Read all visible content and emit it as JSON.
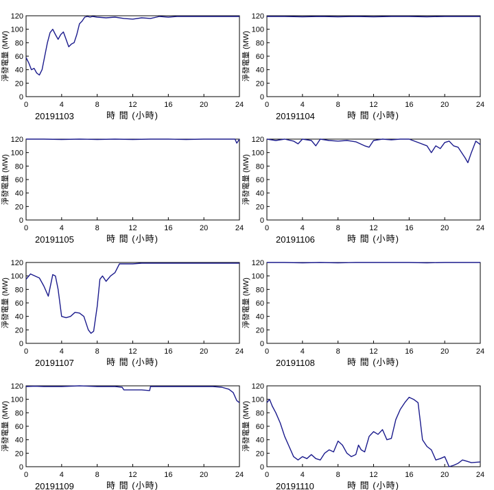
{
  "colors": {
    "series": "#1a1a8c",
    "axis": "#000000"
  },
  "axes": {
    "xlabel": "時 間 (小時)",
    "ylabel": "淨發電量 (MW)",
    "xlim": [
      0,
      24
    ],
    "ylim": [
      0,
      120
    ],
    "xticks": [
      0,
      4,
      8,
      12,
      16,
      20,
      24
    ],
    "yticks": [
      0,
      20,
      40,
      60,
      80,
      100,
      120
    ]
  },
  "chart_data": [
    {
      "type": "line",
      "date": "20191103",
      "x": [
        0,
        0.3,
        0.6,
        0.9,
        1.2,
        1.5,
        1.8,
        2.1,
        2.4,
        2.7,
        3,
        3.3,
        3.6,
        3.9,
        4.2,
        4.5,
        4.8,
        5.1,
        5.4,
        5.7,
        6,
        6.3,
        6.6,
        6.9,
        7.2,
        7.5,
        8,
        9,
        10,
        11,
        12,
        13,
        14,
        15,
        16,
        17,
        18,
        19,
        20,
        21,
        22,
        23,
        23.5,
        24
      ],
      "y": [
        58,
        50,
        40,
        42,
        35,
        32,
        40,
        60,
        80,
        95,
        100,
        92,
        85,
        92,
        96,
        85,
        74,
        78,
        80,
        92,
        108,
        112,
        118,
        119,
        118,
        119,
        118,
        117,
        118,
        116,
        115,
        117,
        116,
        119,
        118,
        119,
        119,
        119,
        119,
        119,
        119,
        119,
        119,
        119
      ]
    },
    {
      "type": "line",
      "date": "20191104",
      "x": [
        0,
        2,
        4,
        6,
        8,
        10,
        12,
        14,
        16,
        18,
        20,
        22,
        24
      ],
      "y": [
        119,
        119,
        118.5,
        119,
        118.5,
        119,
        118.5,
        119,
        119,
        118.5,
        119,
        119,
        119
      ]
    },
    {
      "type": "line",
      "date": "20191105",
      "x": [
        0,
        2,
        4,
        6,
        8,
        10,
        12,
        14,
        16,
        18,
        20,
        22,
        23.5,
        23.7,
        24
      ],
      "y": [
        120,
        120,
        119.5,
        120,
        119.5,
        120,
        119.5,
        120,
        120,
        119.5,
        120,
        120,
        120,
        114,
        120
      ]
    },
    {
      "type": "line",
      "date": "20191106",
      "x": [
        0,
        1,
        2,
        3,
        3.5,
        4,
        5,
        5.5,
        6,
        7,
        8,
        9,
        10,
        11,
        11.5,
        12,
        13,
        14,
        15,
        16,
        17,
        18,
        18.5,
        19,
        19.5,
        20,
        20.5,
        21,
        21.5,
        22,
        22.3,
        22.6,
        23,
        23.5,
        24
      ],
      "y": [
        120,
        118,
        120,
        117,
        113,
        120,
        118,
        110,
        120,
        118,
        117,
        118,
        116,
        110,
        108,
        118,
        120,
        119,
        120,
        120,
        115,
        110,
        100,
        110,
        106,
        115,
        117,
        110,
        108,
        98,
        92,
        85,
        100,
        117,
        112
      ]
    },
    {
      "type": "line",
      "date": "20191107",
      "x": [
        0,
        0.5,
        1,
        1.5,
        2,
        2.5,
        3,
        3.3,
        3.6,
        4,
        4.5,
        5,
        5.5,
        6,
        6.5,
        7,
        7.3,
        7.6,
        8,
        8.3,
        8.6,
        9,
        9.5,
        10,
        10.5,
        11,
        12,
        13,
        14,
        16,
        18,
        20,
        22,
        24
      ],
      "y": [
        95,
        103,
        100,
        97,
        85,
        70,
        102,
        100,
        80,
        40,
        38,
        40,
        46,
        45,
        40,
        20,
        15,
        18,
        55,
        95,
        100,
        92,
        100,
        105,
        118,
        118,
        118,
        119,
        119,
        119,
        119,
        119,
        119,
        119
      ]
    },
    {
      "type": "line",
      "date": "20191108",
      "x": [
        0,
        2,
        4,
        6,
        8,
        10,
        12,
        14,
        16,
        18,
        20,
        22,
        24
      ],
      "y": [
        120,
        120,
        119.5,
        120,
        119.5,
        120,
        120,
        120,
        120,
        119.5,
        120,
        120,
        120
      ]
    },
    {
      "type": "line",
      "date": "20191109",
      "x": [
        0,
        1,
        2,
        4,
        6,
        8,
        10,
        10.8,
        11,
        12,
        13,
        13.9,
        14,
        16,
        18,
        20,
        21,
        22,
        22.8,
        23.3,
        23.7,
        24
      ],
      "y": [
        119,
        119.5,
        119,
        119,
        120,
        119,
        119,
        118,
        114,
        114,
        114,
        113,
        119,
        119,
        119,
        119,
        119,
        118,
        115,
        110,
        98,
        95
      ]
    },
    {
      "type": "line",
      "date": "20191110",
      "x": [
        0,
        0.3,
        0.6,
        1,
        1.5,
        2,
        2.5,
        3,
        3.5,
        4,
        4.5,
        5,
        5.5,
        6,
        6.5,
        7,
        7.5,
        8,
        8.5,
        9,
        9.5,
        10,
        10.3,
        10.6,
        11,
        11.5,
        12,
        12.5,
        13,
        13.5,
        14,
        14.5,
        15,
        15.5,
        16,
        16.5,
        17,
        17.5,
        18,
        18.5,
        19,
        19.5,
        20,
        20.5,
        21,
        21.5,
        22,
        22.5,
        23,
        24
      ],
      "y": [
        95,
        100,
        90,
        80,
        65,
        45,
        30,
        15,
        10,
        15,
        12,
        18,
        12,
        10,
        20,
        25,
        22,
        38,
        32,
        20,
        15,
        18,
        32,
        25,
        22,
        45,
        52,
        48,
        55,
        40,
        42,
        70,
        85,
        95,
        103,
        100,
        95,
        40,
        30,
        25,
        10,
        12,
        15,
        0,
        2,
        5,
        10,
        8,
        6,
        7
      ]
    }
  ]
}
